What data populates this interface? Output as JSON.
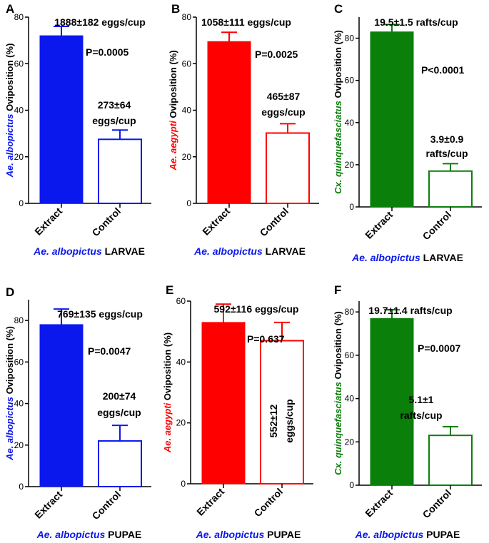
{
  "colors": {
    "blue": "#0a18ee",
    "red": "#ff0000",
    "green": "#0a7f0a",
    "black": "#000000"
  },
  "chart_data": [
    {
      "panel": "A",
      "type": "bar",
      "categories": [
        "Extract",
        "Control"
      ],
      "values": [
        72,
        27.5
      ],
      "errors": [
        4,
        4
      ],
      "ylim": [
        0,
        80
      ],
      "yticks": [
        0,
        20,
        40,
        60,
        80
      ],
      "ylabel_species": "Ae. albopictus",
      "ylabel_rest": " Oviposition (%)",
      "species_color": "#0a18ee",
      "annotations": [
        "1888±182 eggs/cup",
        "P=0.0005",
        "273±64",
        "eggs/cup"
      ],
      "bottom_species": "Ae. albopictus",
      "bottom_stage": " LARVAE",
      "grid": false
    },
    {
      "panel": "B",
      "type": "bar",
      "categories": [
        "Extract",
        "Control"
      ],
      "values": [
        69.5,
        30.2
      ],
      "errors": [
        4,
        4
      ],
      "ylim": [
        0,
        80
      ],
      "yticks": [
        0,
        20,
        40,
        60,
        80
      ],
      "ylabel_species": "Ae. aegypti",
      "ylabel_rest": " Oviposition (%)",
      "species_color": "#ff0000",
      "annotations": [
        "1058±111 eggs/cup",
        "P=0.0025",
        "465±87",
        "eggs/cup"
      ],
      "bottom_species": "Ae. albopictus",
      "bottom_stage": " LARVAE",
      "grid": false
    },
    {
      "panel": "C",
      "type": "bar",
      "categories": [
        "Extract",
        "Control"
      ],
      "values": [
        83,
        17
      ],
      "errors": [
        3.5,
        3.5
      ],
      "ylim": [
        0,
        90
      ],
      "yticks": [
        0,
        20,
        40,
        60,
        80
      ],
      "ylabel_species": "Cx. quinquefasciatus",
      "ylabel_rest": " Oviposition (%)",
      "species_color": "#0a7f0a",
      "annotations": [
        "19.5±1.5 rafts/cup",
        "P<0.0001",
        "3.9±0.9",
        "rafts/cup"
      ],
      "bottom_species": "Ae. albopictus",
      "bottom_stage": " LARVAE",
      "grid": false
    },
    {
      "panel": "D",
      "type": "bar",
      "categories": [
        "Extract",
        "Control"
      ],
      "values": [
        78,
        22
      ],
      "errors": [
        7.5,
        7.5
      ],
      "ylim": [
        0,
        90
      ],
      "yticks": [
        0,
        20,
        40,
        60,
        80
      ],
      "ylabel_species": "Ae. albopictus",
      "ylabel_rest": " Oviposition (%)",
      "species_color": "#0a18ee",
      "annotations": [
        "769±135 eggs/cup",
        "P=0.0047",
        "200±74",
        "eggs/cup"
      ],
      "bottom_species": "Ae. albopictus",
      "bottom_stage": " PUPAE",
      "grid": false
    },
    {
      "panel": "E",
      "type": "bar",
      "categories": [
        "Extract",
        "Control"
      ],
      "values": [
        53,
        47
      ],
      "errors": [
        6,
        6
      ],
      "ylim": [
        0,
        60
      ],
      "yticks": [
        0,
        20,
        40,
        60
      ],
      "ylabel_species": "Ae. aegypti",
      "ylabel_rest": " Oviposition (%)",
      "species_color": "#ff0000",
      "annotations": [
        "592±116 eggs/cup",
        "P=0.637",
        "552±12",
        "eggs/cup"
      ],
      "bottom_species": "Ae. albopictus",
      "bottom_stage": " PUPAE",
      "grid": false
    },
    {
      "panel": "F",
      "type": "bar",
      "categories": [
        "Extract",
        "Control"
      ],
      "values": [
        77,
        23
      ],
      "errors": [
        4,
        4
      ],
      "ylim": [
        0,
        85
      ],
      "yticks": [
        0,
        20,
        40,
        60,
        80
      ],
      "ylabel_species": "Cx. quinquefasciatus",
      "ylabel_rest": " Oviposition (%)",
      "species_color": "#0a7f0a",
      "annotations": [
        "19.7±1.4 rafts/cup",
        "P=0.0007",
        "5.1±1",
        "rafts/cup"
      ],
      "bottom_species": "Ae. albopictus",
      "bottom_stage": " PUPAE",
      "grid": false
    }
  ]
}
